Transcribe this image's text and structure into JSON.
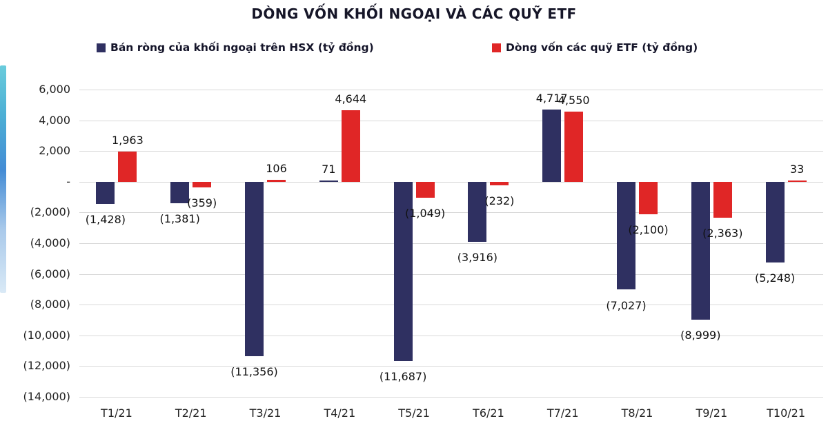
{
  "title": "DÒNG VỐN KHỐI NGOẠI VÀ CÁC QUỸ ETF",
  "legend": [
    {
      "label": "Bán ròng của khối ngoại trên HSX (tỷ đồng)",
      "color": "#2f3061"
    },
    {
      "label": "Dòng vốn các quỹ ETF (tỷ đồng)",
      "color": "#e02626"
    }
  ],
  "chart_data": {
    "type": "bar",
    "title": "DÒNG VỐN KHỐI NGOẠI VÀ CÁC QUỸ ETF",
    "categories": [
      "T1/21",
      "T2/21",
      "T3/21",
      "T4/21",
      "T5/21",
      "T6/21",
      "T7/21",
      "T8/21",
      "T9/21",
      "T10/21"
    ],
    "series": [
      {
        "name": "Bán ròng của khối ngoại trên HSX (tỷ đồng)",
        "color": "#2f3061",
        "values": [
          -1428,
          -1381,
          -11356,
          71,
          -11687,
          -3916,
          4717,
          -7027,
          -8999,
          -5248
        ],
        "labels": [
          "(1,428)",
          "(1,381)",
          "(11,356)",
          "71",
          "(11,687)",
          "(3,916)",
          "4,717",
          "(7,027)",
          "(8,999)",
          "(5,248)"
        ]
      },
      {
        "name": "Dòng vốn các quỹ ETF (tỷ đồng)",
        "color": "#e02626",
        "values": [
          1963,
          -359,
          106,
          4644,
          -1049,
          -232,
          4550,
          -2100,
          -2363,
          33
        ],
        "labels": [
          "1,963",
          "(359)",
          "106",
          "4,644",
          "(1,049)",
          "(232)",
          "4,550",
          "(2,100)",
          "(2,363)",
          "33"
        ]
      }
    ],
    "ylim": [
      -14000,
      6000
    ],
    "ytick_interval": 2000,
    "ytick_labels": [
      "6,000",
      "4,000",
      "2,000",
      "-",
      "(2,000)",
      "(4,000)",
      "(6,000)",
      "(8,000)",
      "(10,000)",
      "(12,000)",
      "(14,000)"
    ],
    "grid": true,
    "legend_position": "top"
  }
}
